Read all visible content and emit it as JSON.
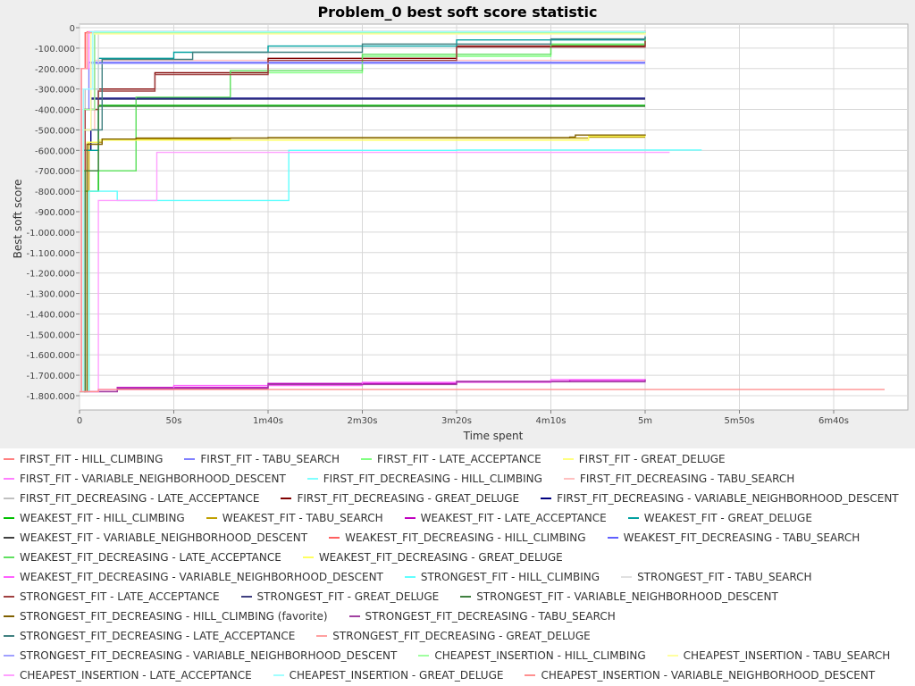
{
  "chart_data": {
    "type": "line",
    "title": "Problem_0 best soft score statistic",
    "xlabel": "Time spent",
    "ylabel": "Best soft score",
    "xlim_seconds": [
      0,
      440
    ],
    "ylim": [
      -1860000,
      0
    ],
    "x_ticks": [
      {
        "value": 0,
        "label": "0"
      },
      {
        "value": 50,
        "label": "50s"
      },
      {
        "value": 100,
        "label": "1m40s"
      },
      {
        "value": 150,
        "label": "2m30s"
      },
      {
        "value": 200,
        "label": "3m20s"
      },
      {
        "value": 250,
        "label": "4m10s"
      },
      {
        "value": 300,
        "label": "5m"
      },
      {
        "value": 350,
        "label": "5m50s"
      },
      {
        "value": 400,
        "label": "6m40s"
      }
    ],
    "y_ticks": [
      {
        "value": 0,
        "label": "0"
      },
      {
        "value": -100000,
        "label": "-100.000"
      },
      {
        "value": -200000,
        "label": "-200.000"
      },
      {
        "value": -300000,
        "label": "-300.000"
      },
      {
        "value": -400000,
        "label": "-400.000"
      },
      {
        "value": -500000,
        "label": "-500.000"
      },
      {
        "value": -600000,
        "label": "-600.000"
      },
      {
        "value": -700000,
        "label": "-700.000"
      },
      {
        "value": -800000,
        "label": "-800.000"
      },
      {
        "value": -900000,
        "label": "-900.000"
      },
      {
        "value": -1000000,
        "label": "-1.000.000"
      },
      {
        "value": -1100000,
        "label": "-1.100.000"
      },
      {
        "value": -1200000,
        "label": "-1.200.000"
      },
      {
        "value": -1300000,
        "label": "-1.300.000"
      },
      {
        "value": -1400000,
        "label": "-1.400.000"
      },
      {
        "value": -1500000,
        "label": "-1.500.000"
      },
      {
        "value": -1600000,
        "label": "-1.600.000"
      },
      {
        "value": -1700000,
        "label": "-1.700.000"
      },
      {
        "value": -1800000,
        "label": "-1.800.000"
      }
    ],
    "grid": true,
    "legend_position": "bottom",
    "series": [
      {
        "name": "FIRST_FIT - HILL_CLIMBING",
        "color": "#ff8080",
        "x": [
          0,
          1,
          4,
          300
        ],
        "y": [
          -1780000,
          -200000,
          -20000,
          -15000
        ]
      },
      {
        "name": "FIRST_FIT - TABU_SEARCH",
        "color": "#8080ff",
        "x": [
          0,
          2,
          5,
          300
        ],
        "y": [
          -1780000,
          -400000,
          -170000,
          -170000
        ]
      },
      {
        "name": "FIRST_FIT - LATE_ACCEPTANCE",
        "color": "#80ff80",
        "x": [
          0,
          2,
          30,
          80,
          150,
          250,
          300
        ],
        "y": [
          -1780000,
          -700000,
          -350000,
          -220000,
          -140000,
          -85000,
          -60000
        ]
      },
      {
        "name": "FIRST_FIT - GREAT_DELUGE",
        "color": "#ffff80",
        "x": [
          0,
          2,
          6,
          300
        ],
        "y": [
          -1780000,
          -500000,
          -30000,
          -20000
        ]
      },
      {
        "name": "FIRST_FIT - VARIABLE_NEIGHBORHOOD_DESCENT",
        "color": "#ff80ff",
        "x": [
          0,
          1,
          5,
          300
        ],
        "y": [
          -1780000,
          -200000,
          -20000,
          -18000
        ]
      },
      {
        "name": "FIRST_FIT_DECREASING - HILL_CLIMBING",
        "color": "#80ffff",
        "x": [
          0,
          2,
          6,
          300
        ],
        "y": [
          -1780000,
          -300000,
          -20000,
          -18000
        ]
      },
      {
        "name": "FIRST_FIT_DECREASING - TABU_SEARCH",
        "color": "#ffc0c0",
        "x": [
          0,
          3,
          8,
          300
        ],
        "y": [
          -1780000,
          -500000,
          -160000,
          -160000
        ]
      },
      {
        "name": "FIRST_FIT_DECREASING - LATE_ACCEPTANCE",
        "color": "#c0c0c0",
        "x": [
          0,
          3,
          10,
          300
        ],
        "y": [
          -1780000,
          -300000,
          -20000,
          -15000
        ]
      },
      {
        "name": "FIRST_FIT_DECREASING - GREAT_DELUGE",
        "color": "#800000",
        "x": [
          0,
          3,
          10,
          40,
          100,
          200,
          300
        ],
        "y": [
          -1780000,
          -400000,
          -300000,
          -220000,
          -150000,
          -90000,
          -60000
        ]
      },
      {
        "name": "FIRST_FIT_DECREASING - VARIABLE_NEIGHBORHOOD_DESCENT",
        "color": "#000080",
        "x": [
          0,
          2,
          6,
          300
        ],
        "y": [
          -1780000,
          -600000,
          -345000,
          -345000
        ]
      },
      {
        "name": "WEAKEST_FIT - HILL_CLIMBING",
        "color": "#00c000",
        "x": [
          0,
          3,
          10,
          300
        ],
        "y": [
          -1780000,
          -800000,
          -380000,
          -380000
        ]
      },
      {
        "name": "WEAKEST_FIT - TABU_SEARCH",
        "color": "#c0a000",
        "x": [
          0,
          5,
          10,
          12,
          30,
          80,
          270,
          300
        ],
        "y": [
          -1780000,
          -560000,
          -560000,
          -545000,
          -545000,
          -540000,
          -535000,
          -535000
        ]
      },
      {
        "name": "WEAKEST_FIT - LATE_ACCEPTANCE",
        "color": "#c000c0",
        "x": [
          0,
          20,
          100,
          200,
          260,
          300
        ],
        "y": [
          -1780000,
          -1760000,
          -1740000,
          -1730000,
          -1725000,
          -1720000
        ]
      },
      {
        "name": "WEAKEST_FIT - GREAT_DELUGE",
        "color": "#00a0a0",
        "x": [
          0,
          2,
          10,
          50,
          100,
          200,
          300
        ],
        "y": [
          -1780000,
          -600000,
          -150000,
          -120000,
          -90000,
          -60000,
          -45000
        ]
      },
      {
        "name": "WEAKEST_FIT - VARIABLE_NEIGHBORHOOD_DESCENT",
        "color": "#404040",
        "x": [
          0,
          2,
          8,
          300
        ],
        "y": [
          -1780000,
          -400000,
          -20000,
          -20000
        ]
      },
      {
        "name": "WEAKEST_FIT_DECREASING - HILL_CLIMBING",
        "color": "#ff6060",
        "x": [
          0,
          1,
          3,
          300
        ],
        "y": [
          -1780000,
          -200000,
          -25000,
          -22000
        ]
      },
      {
        "name": "WEAKEST_FIT_DECREASING - TABU_SEARCH",
        "color": "#6060ff",
        "x": [
          0,
          2,
          6,
          300
        ],
        "y": [
          -1780000,
          -300000,
          -170000,
          -170000
        ]
      },
      {
        "name": "WEAKEST_FIT_DECREASING - LATE_ACCEPTANCE",
        "color": "#60e060",
        "x": [
          0,
          2,
          30,
          80,
          150,
          250,
          300
        ],
        "y": [
          -1780000,
          -700000,
          -340000,
          -210000,
          -130000,
          -80000,
          -55000
        ]
      },
      {
        "name": "WEAKEST_FIT_DECREASING - GREAT_DELUGE",
        "color": "#ffff60",
        "x": [
          0,
          4,
          10,
          270,
          300
        ],
        "y": [
          -1780000,
          -560000,
          -550000,
          -530000,
          -525000
        ]
      },
      {
        "name": "WEAKEST_FIT_DECREASING - VARIABLE_NEIGHBORHOOD_DESCENT",
        "color": "#ff60ff",
        "x": [
          0,
          10,
          50,
          150,
          250,
          300
        ],
        "y": [
          -1780000,
          -1770000,
          -1750000,
          -1735000,
          -1722000,
          -1718000
        ]
      },
      {
        "name": "STRONGEST_FIT - HILL_CLIMBING",
        "color": "#60ffff",
        "x": [
          0,
          5,
          20,
          110,
          111,
          200,
          330
        ],
        "y": [
          -1780000,
          -800000,
          -845000,
          -845000,
          -600000,
          -598000,
          -598000
        ]
      },
      {
        "name": "STRONGEST_FIT - TABU_SEARCH",
        "color": "#e0e0e0",
        "x": [
          0,
          3,
          10,
          300
        ],
        "y": [
          -1780000,
          -400000,
          -20000,
          -18000
        ]
      },
      {
        "name": "STRONGEST_FIT - LATE_ACCEPTANCE",
        "color": "#a04040",
        "x": [
          0,
          3,
          10,
          40,
          100,
          200,
          300
        ],
        "y": [
          -1780000,
          -400000,
          -310000,
          -230000,
          -160000,
          -95000,
          -65000
        ]
      },
      {
        "name": "STRONGEST_FIT - GREAT_DELUGE",
        "color": "#404080",
        "x": [
          0,
          2,
          6,
          300
        ],
        "y": [
          -1780000,
          -500000,
          -350000,
          -350000
        ]
      },
      {
        "name": "STRONGEST_FIT - VARIABLE_NEIGHBORHOOD_DESCENT",
        "color": "#408040",
        "x": [
          0,
          3,
          10,
          300
        ],
        "y": [
          -1780000,
          -700000,
          -385000,
          -385000
        ]
      },
      {
        "name": "STRONGEST_FIT_DECREASING - HILL_CLIMBING (favorite)",
        "color": "#806000",
        "x": [
          0,
          4,
          12,
          30,
          100,
          260,
          263,
          300
        ],
        "y": [
          -1780000,
          -570000,
          -545000,
          -540000,
          -538000,
          -535000,
          -525000,
          -522000
        ]
      },
      {
        "name": "STRONGEST_FIT_DECREASING - TABU_SEARCH",
        "color": "#a040a0",
        "x": [
          0,
          20,
          100,
          200,
          300
        ],
        "y": [
          -1780000,
          -1765000,
          -1745000,
          -1732000,
          -1722000
        ]
      },
      {
        "name": "STRONGEST_FIT_DECREASING - LATE_ACCEPTANCE",
        "color": "#408080",
        "x": [
          0,
          2,
          12,
          60,
          150,
          250,
          300
        ],
        "y": [
          -1780000,
          -500000,
          -155000,
          -120000,
          -80000,
          -55000,
          -42000
        ]
      },
      {
        "name": "STRONGEST_FIT_DECREASING - GREAT_DELUGE",
        "color": "#ffa0a0",
        "x": [
          0,
          1,
          4,
          300
        ],
        "y": [
          -1780000,
          -200000,
          -25000,
          -20000
        ]
      },
      {
        "name": "STRONGEST_FIT_DECREASING - VARIABLE_NEIGHBORHOOD_DESCENT",
        "color": "#a0a0ff",
        "x": [
          0,
          2,
          6,
          300
        ],
        "y": [
          -1780000,
          -300000,
          -175000,
          -175000
        ]
      },
      {
        "name": "CHEAPEST_INSERTION - HILL_CLIMBING",
        "color": "#a0ffa0",
        "x": [
          0,
          2,
          8,
          300
        ],
        "y": [
          -1780000,
          -400000,
          -25000,
          -22000
        ]
      },
      {
        "name": "CHEAPEST_INSERTION - TABU_SEARCH",
        "color": "#ffffa0",
        "x": [
          0,
          2,
          6,
          300
        ],
        "y": [
          -1780000,
          -500000,
          -30000,
          -25000
        ]
      },
      {
        "name": "CHEAPEST_INSERTION - LATE_ACCEPTANCE",
        "color": "#ffa0ff",
        "x": [
          0,
          10,
          40,
          41,
          100,
          200,
          313
        ],
        "y": [
          -1780000,
          -845000,
          -845000,
          -610000,
          -610000,
          -610000,
          -610000
        ]
      },
      {
        "name": "CHEAPEST_INSERTION - GREAT_DELUGE",
        "color": "#a0ffff",
        "x": [
          0,
          2,
          7,
          300
        ],
        "y": [
          -1780000,
          -300000,
          -20000,
          -18000
        ]
      },
      {
        "name": "CHEAPEST_INSERTION - VARIABLE_NEIGHBORHOOD_DESCENT",
        "color": "#ff9090",
        "x": [
          0,
          10,
          100,
          200,
          300,
          427
        ],
        "y": [
          -1780000,
          -1770000,
          -1770000,
          -1770000,
          -1770000,
          -1770000
        ]
      }
    ]
  }
}
